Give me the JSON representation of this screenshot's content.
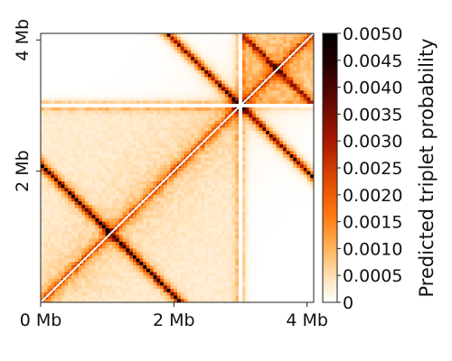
{
  "chart_data": {
    "type": "heatmap",
    "title": "",
    "xlabel": "",
    "ylabel": "",
    "x_ticks": [
      "0 Mb",
      "2 Mb",
      "4 Mb"
    ],
    "x_tick_values": [
      0,
      2,
      4
    ],
    "y_ticks": [
      "2 Mb",
      "4 Mb"
    ],
    "y_tick_values": [
      2,
      4
    ],
    "axis_range_mb": [
      0,
      4.1
    ],
    "colorbar": {
      "label": "Predicted triplet probability",
      "ticks": [
        "0",
        "0.0005",
        "0.0010",
        "0.0015",
        "0.0020",
        "0.0025",
        "0.0030",
        "0.0035",
        "0.0040",
        "0.0045",
        "0.0050"
      ],
      "tick_values": [
        0,
        0.0005,
        0.001,
        0.0015,
        0.002,
        0.0025,
        0.003,
        0.0035,
        0.004,
        0.0045,
        0.005
      ],
      "range": [
        0,
        0.005
      ],
      "colormap": "gist_heat_r"
    },
    "gaps_mb": [
      3.0
    ],
    "colors": {
      "low": "#ffffff",
      "mid": "#f06010",
      "high": "#000000"
    }
  }
}
